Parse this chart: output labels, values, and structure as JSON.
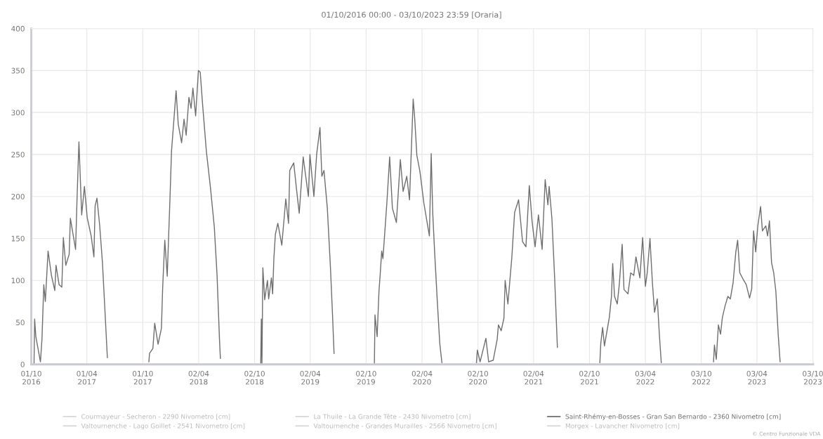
{
  "chart_data": {
    "type": "line",
    "title": "01/10/2016 00:00 - 03/10/2023 23:59 [Oraria]",
    "xlim": [
      "2016-10-01",
      "2023-10-03T23:59"
    ],
    "xticks": [
      {
        "value": "2016-10-01",
        "label": "01/10\n2016"
      },
      {
        "value": "2017-04-01",
        "label": "01/04\n2017"
      },
      {
        "value": "2017-10-01",
        "label": "01/10\n2017"
      },
      {
        "value": "2018-04-02",
        "label": "02/04\n2018"
      },
      {
        "value": "2018-10-02",
        "label": "02/10\n2018"
      },
      {
        "value": "2019-04-02",
        "label": "02/04\n2019"
      },
      {
        "value": "2019-10-02",
        "label": "02/10\n2019"
      },
      {
        "value": "2020-04-02",
        "label": "02/04\n2020"
      },
      {
        "value": "2020-10-02",
        "label": "02/10\n2020"
      },
      {
        "value": "2021-04-02",
        "label": "02/04\n2021"
      },
      {
        "value": "2021-10-02",
        "label": "02/10\n2021"
      },
      {
        "value": "2022-04-03",
        "label": "03/04\n2022"
      },
      {
        "value": "2022-10-03",
        "label": "03/10\n2022"
      },
      {
        "value": "2023-04-03",
        "label": "03/04\n2023"
      },
      {
        "value": "2023-10-03",
        "label": "03/10\n2023"
      }
    ],
    "ylim": [
      0,
      400
    ],
    "yticks": [
      0,
      50,
      100,
      150,
      200,
      250,
      300,
      350,
      400
    ],
    "grid": true,
    "legend": "bottom",
    "marker": "none",
    "line_style": "solid",
    "annotations": [
      "© Centro Funzionale VDA"
    ],
    "series": [
      {
        "name": "Courmayeur - Secheron - 2290 Nivometro [cm]",
        "color": "#d6d6d6"
      },
      {
        "name": "Valtournenche - Lago Goillet - 2541 Nivometro [cm]",
        "color": "#d6d6d6"
      },
      {
        "name": "La Thuile - La Grande Tête - 2430 Nivometro [cm]",
        "color": "#d6d6d6"
      },
      {
        "name": "Valtournenche - Grandes Murailles - 2566 Nivometro [cm]",
        "color": "#d6d6d6"
      },
      {
        "name": "Saint-Rhémy-en-Bosses - Gran San Bernardo - 2360 Nivometro [cm]",
        "color": "#6e6e6e",
        "x": [
          "2016-10-10",
          "2016-10-12",
          "2016-10-16",
          "2016-10-31",
          "2016-11-05",
          "2016-11-11",
          "2016-11-16",
          "2016-11-25",
          "2016-12-06",
          "2016-12-17",
          "2016-12-21",
          "2016-12-31",
          "2017-01-09",
          "2017-01-14",
          "2017-01-22",
          "2017-02-02",
          "2017-02-06",
          "2017-02-23",
          "2017-02-28",
          "2017-03-06",
          "2017-03-15",
          "2017-03-24",
          "2017-04-02",
          "2017-04-15",
          "2017-04-24",
          "2017-04-28",
          "2017-05-04",
          "2017-05-13",
          "2017-05-22",
          "2017-05-31",
          "2017-06-07",
          "2017-08-01",
          "2017-10-21",
          "2017-10-23",
          "2017-11-03",
          "2017-11-09",
          "2017-11-20",
          "2017-12-01",
          "2017-12-05",
          "2017-12-12",
          "2017-12-20",
          "2017-12-29",
          "2018-01-03",
          "2018-01-07",
          "2018-01-18",
          "2018-01-25",
          "2018-02-05",
          "2018-02-13",
          "2018-02-20",
          "2018-03-01",
          "2018-03-08",
          "2018-03-14",
          "2018-03-23",
          "2018-04-01",
          "2018-04-07",
          "2018-04-14",
          "2018-04-27",
          "2018-05-10",
          "2018-05-23",
          "2018-06-01",
          "2018-06-09",
          "2018-06-12",
          "2018-08-01",
          "2018-10-22",
          "2018-10-24",
          "2018-10-26",
          "2018-10-29",
          "2018-11-04",
          "2018-11-13",
          "2018-11-17",
          "2018-11-26",
          "2018-11-30",
          "2018-12-04",
          "2018-12-09",
          "2018-12-17",
          "2018-12-30",
          "2019-01-12",
          "2019-01-21",
          "2019-01-25",
          "2019-02-07",
          "2019-02-16",
          "2019-02-25",
          "2019-03-10",
          "2019-03-27",
          "2019-04-01",
          "2019-04-14",
          "2019-04-23",
          "2019-05-04",
          "2019-05-10",
          "2019-05-17",
          "2019-05-28",
          "2019-06-07",
          "2019-06-14",
          "2019-06-19",
          "2019-08-01",
          "2019-10-29",
          "2019-10-31",
          "2019-11-07",
          "2019-11-13",
          "2019-11-17",
          "2019-11-22",
          "2019-11-26",
          "2019-12-09",
          "2019-12-18",
          "2019-12-27",
          "2020-01-09",
          "2020-01-22",
          "2020-01-31",
          "2020-02-12",
          "2020-02-21",
          "2020-03-04",
          "2020-03-09",
          "2020-03-16",
          "2020-03-26",
          "2020-04-08",
          "2020-04-26",
          "2020-05-02",
          "2020-05-07",
          "2020-05-13",
          "2020-05-22",
          "2020-05-30",
          "2020-06-06",
          "2020-08-01",
          "2020-09-27",
          "2020-09-30",
          "2020-10-09",
          "2020-10-28",
          "2020-11-06",
          "2020-11-21",
          "2020-12-04",
          "2020-12-08",
          "2020-12-17",
          "2020-12-26",
          "2020-12-30",
          "2021-01-08",
          "2021-01-21",
          "2021-01-30",
          "2021-02-12",
          "2021-02-25",
          "2021-03-08",
          "2021-03-19",
          "2021-03-28",
          "2021-04-07",
          "2021-04-18",
          "2021-04-30",
          "2021-05-10",
          "2021-05-19",
          "2021-05-23",
          "2021-06-01",
          "2021-06-10",
          "2021-06-19",
          "2021-08-01",
          "2021-11-05",
          "2021-11-08",
          "2021-11-14",
          "2021-11-20",
          "2021-11-27",
          "2021-12-06",
          "2021-12-13",
          "2021-12-17",
          "2021-12-23",
          "2022-01-01",
          "2022-01-08",
          "2022-01-17",
          "2022-01-23",
          "2022-02-05",
          "2022-02-14",
          "2022-02-24",
          "2022-03-03",
          "2022-03-16",
          "2022-03-25",
          "2022-04-03",
          "2022-04-09",
          "2022-04-18",
          "2022-04-26",
          "2022-05-03",
          "2022-05-12",
          "2022-05-19",
          "2022-05-25",
          "2022-08-01",
          "2022-11-12",
          "2022-11-15",
          "2022-11-21",
          "2022-11-28",
          "2022-12-05",
          "2022-12-11",
          "2022-12-20",
          "2022-12-29",
          "2023-01-06",
          "2023-01-15",
          "2023-01-24",
          "2023-01-30",
          "2023-02-06",
          "2023-02-19",
          "2023-02-27",
          "2023-03-10",
          "2023-03-17",
          "2023-03-23",
          "2023-03-30",
          "2023-04-06",
          "2023-04-15",
          "2023-04-21",
          "2023-05-02",
          "2023-05-08",
          "2023-05-14",
          "2023-05-21",
          "2023-05-28",
          "2023-06-04",
          "2023-06-12",
          "2023-06-18"
        ],
        "values": [
          0,
          54,
          33,
          3,
          30,
          95,
          75,
          135,
          106,
          88,
          118,
          95,
          92,
          151,
          118,
          131,
          174,
          137,
          200,
          265,
          178,
          212,
          175,
          153,
          128,
          189,
          198,
          165,
          121,
          58,
          8,
          null,
          3,
          13,
          19,
          49,
          24,
          43,
          91,
          148,
          105,
          198,
          254,
          273,
          326,
          286,
          264,
          292,
          273,
          318,
          305,
          329,
          296,
          350,
          348,
          313,
          254,
          212,
          164,
          107,
          30,
          7,
          null,
          0,
          54,
          0,
          115,
          77,
          100,
          78,
          103,
          84,
          126,
          155,
          168,
          142,
          197,
          168,
          231,
          240,
          209,
          180,
          247,
          200,
          250,
          200,
          250,
          282,
          224,
          231,
          186,
          117,
          59,
          13,
          null,
          0,
          59,
          33,
          87,
          107,
          135,
          126,
          193,
          247,
          186,
          169,
          244,
          206,
          224,
          196,
          316,
          293,
          249,
          230,
          192,
          153,
          251,
          180,
          135,
          75,
          25,
          2,
          null,
          2,
          17,
          3,
          31,
          3,
          5,
          30,
          47,
          40,
          55,
          100,
          72,
          128,
          181,
          196,
          146,
          140,
          213,
          171,
          140,
          178,
          137,
          220,
          190,
          212,
          174,
          103,
          20,
          null,
          2,
          25,
          44,
          22,
          37,
          56,
          81,
          120,
          81,
          72,
          97,
          143,
          89,
          84,
          109,
          106,
          128,
          103,
          151,
          93,
          109,
          150,
          97,
          62,
          78,
          34,
          2,
          null,
          3,
          23,
          6,
          47,
          36,
          56,
          70,
          81,
          78,
          97,
          134,
          148,
          109,
          100,
          95,
          79,
          90,
          159,
          134,
          165,
          188,
          159,
          165,
          153,
          171,
          121,
          109,
          87,
          34,
          3
        ]
      },
      {
        "name": "Morgex - Lavancher Nivometro [cm]",
        "color": "#d6d6d6"
      }
    ]
  }
}
